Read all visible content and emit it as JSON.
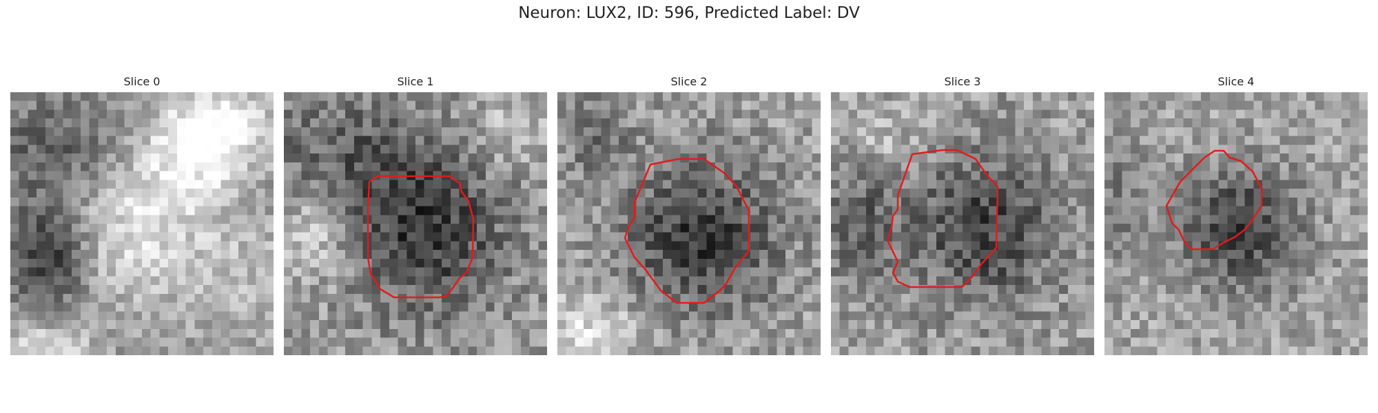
{
  "figure": {
    "title": "Neuron: LUX2, ID: 596, Predicted Label: DV"
  },
  "slices": [
    {
      "title": "Slice 0",
      "has_contour": false,
      "contour_color": "#e31a1c"
    },
    {
      "title": "Slice 1",
      "has_contour": true,
      "contour_color": "#e31a1c"
    },
    {
      "title": "Slice 2",
      "has_contour": true,
      "contour_color": "#e31a1c"
    },
    {
      "title": "Slice 3",
      "has_contour": true,
      "contour_color": "#e31a1c"
    },
    {
      "title": "Slice 4",
      "has_contour": true,
      "contour_color": "#e31a1c"
    }
  ],
  "colormap": "gray"
}
